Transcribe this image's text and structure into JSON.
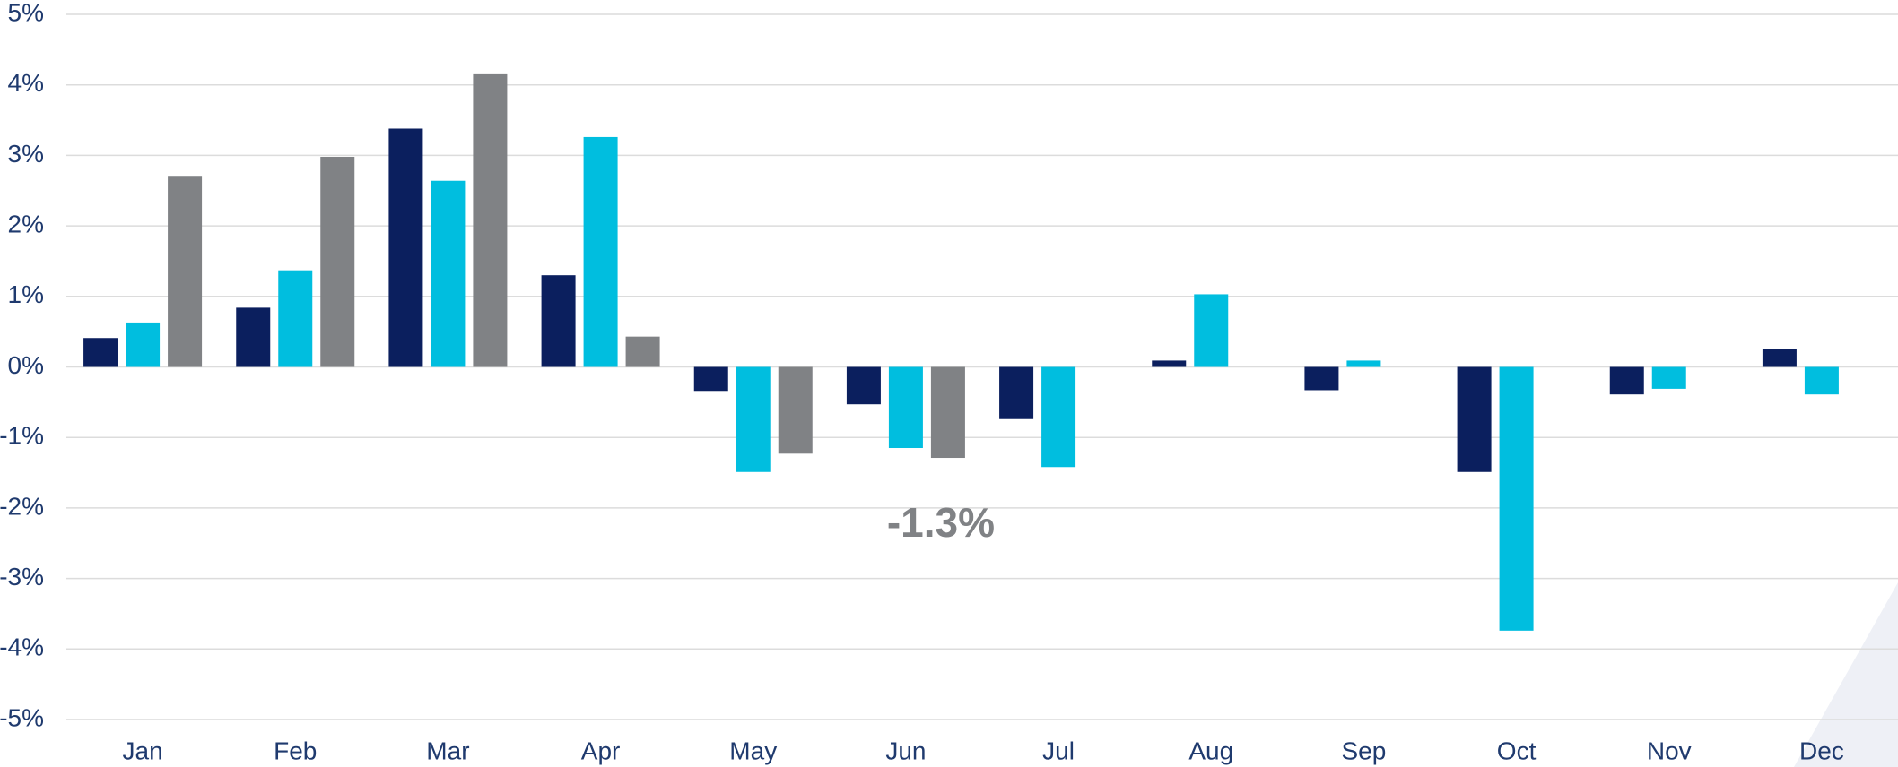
{
  "chart_data": {
    "type": "bar",
    "categories": [
      "Jan",
      "Feb",
      "Mar",
      "Apr",
      "May",
      "Jun",
      "Jul",
      "Aug",
      "Sep",
      "Oct",
      "Nov",
      "Dec"
    ],
    "series": [
      {
        "color": "#0b1f5e",
        "values": [
          0.41,
          0.84,
          3.38,
          1.3,
          -0.34,
          -0.53,
          -0.74,
          0.09,
          -0.33,
          -1.49,
          -0.39,
          0.26
        ]
      },
      {
        "color": "#00bedf",
        "values": [
          0.63,
          1.37,
          2.64,
          3.26,
          -1.49,
          -1.15,
          -1.42,
          1.03,
          0.09,
          -3.74,
          -0.31,
          -0.39
        ]
      },
      {
        "color": "#808285",
        "values": [
          2.71,
          2.98,
          4.15,
          0.43,
          -1.23,
          -1.29,
          null,
          null,
          null,
          null,
          null,
          null
        ],
        "value_labels": [
          null,
          null,
          null,
          null,
          null,
          "-1.3%",
          null,
          null,
          null,
          null,
          null,
          null
        ]
      }
    ],
    "ylim": [
      -5,
      5
    ],
    "yticks": [
      {
        "value": -5,
        "label": "-5%"
      },
      {
        "value": -4,
        "label": "-4%"
      },
      {
        "value": -3,
        "label": "-3%"
      },
      {
        "value": -2,
        "label": "-2%"
      },
      {
        "value": -1,
        "label": "-1%"
      },
      {
        "value": 0,
        "label": "0%"
      },
      {
        "value": 1,
        "label": "1%"
      },
      {
        "value": 2,
        "label": "2%"
      },
      {
        "value": 3,
        "label": "3%"
      },
      {
        "value": 4,
        "label": "4%"
      },
      {
        "value": 5,
        "label": "5%"
      }
    ],
    "grid": true
  }
}
